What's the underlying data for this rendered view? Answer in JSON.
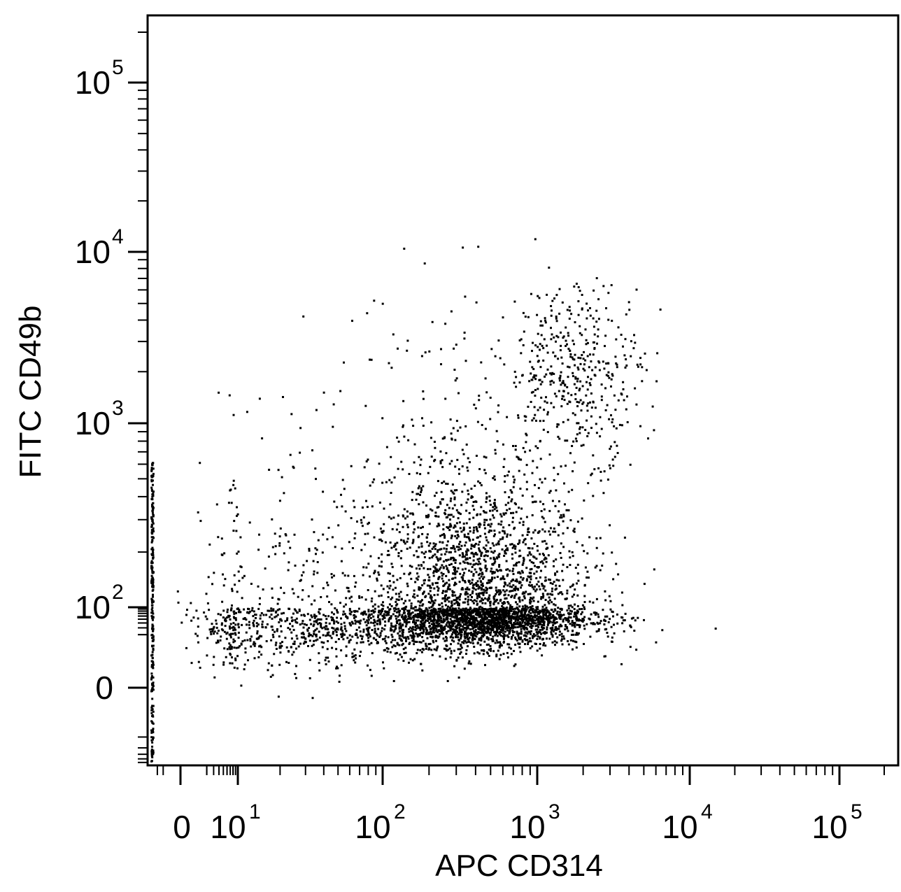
{
  "chart_data": {
    "type": "scatter",
    "xlabel": "APC  CD314",
    "ylabel": "FITC CD49b",
    "scale": "biexponential",
    "xlim": [
      -20,
      200000
    ],
    "ylim": [
      -120,
      200000
    ],
    "xticks": [
      {
        "value": 0,
        "base": "0",
        "exp": ""
      },
      {
        "value": 10,
        "base": "10",
        "exp": "1"
      },
      {
        "value": 100,
        "base": "10",
        "exp": "2"
      },
      {
        "value": 1000,
        "base": "10",
        "exp": "3"
      },
      {
        "value": 10000,
        "base": "10",
        "exp": "4"
      },
      {
        "value": 100000,
        "base": "10",
        "exp": "5"
      }
    ],
    "yticks": [
      {
        "value": 0,
        "base": "0",
        "exp": ""
      },
      {
        "value": 100,
        "base": "10",
        "exp": "2"
      },
      {
        "value": 1000,
        "base": "10",
        "exp": "3"
      },
      {
        "value": 10000,
        "base": "10",
        "exp": "4"
      },
      {
        "value": 100000,
        "base": "10",
        "exp": "5"
      }
    ],
    "populations": [
      {
        "x_center": 420,
        "y_center": 75,
        "x_spread_log": 0.36,
        "y_spread_log": 0.42,
        "events": 3600
      },
      {
        "x_center": 1800,
        "y_center": 2100,
        "x_spread_log": 0.22,
        "y_spread_log": 0.25,
        "events": 420
      },
      {
        "x_center": 30,
        "y_center": 40,
        "x_spread_log": 0.55,
        "y_spread_log": 0.55,
        "events": 900
      },
      {
        "x_center": 300,
        "y_center": 900,
        "x_spread_log": 0.45,
        "y_spread_log": 0.45,
        "events": 160
      }
    ],
    "grid": false,
    "legend": "none",
    "point_color": "#000000"
  }
}
